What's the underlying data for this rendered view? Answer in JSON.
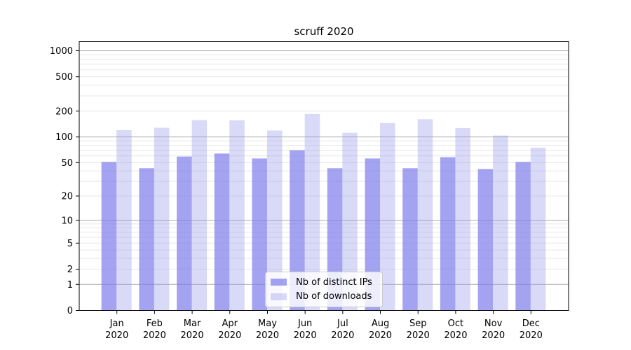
{
  "title": "scruff 2020",
  "chart_data": {
    "type": "bar",
    "title": "scruff 2020",
    "categories": [
      "Jan",
      "Feb",
      "Mar",
      "Apr",
      "May",
      "Jun",
      "Jul",
      "Aug",
      "Sep",
      "Oct",
      "Nov",
      "Dec"
    ],
    "x_tick_year": "2020",
    "series": [
      {
        "name": "Nb of distinct IPs",
        "values": [
          51,
          43,
          59,
          64,
          56,
          70,
          43,
          56,
          43,
          58,
          42,
          51
        ],
        "color": "#7c7ceb",
        "opacity": 0.7
      },
      {
        "name": "Nb of downloads",
        "values": [
          120,
          128,
          157,
          156,
          119,
          185,
          112,
          145,
          161,
          127,
          104,
          75
        ],
        "color": "#9292eb",
        "opacity": 0.35
      }
    ],
    "yscale": "symlog (position = ln(1+value))",
    "yticks": [
      0,
      1,
      2,
      5,
      10,
      20,
      50,
      100,
      200,
      500,
      1000
    ],
    "ylim": [
      0,
      1275
    ],
    "xlabel": "",
    "ylabel": "",
    "grid": "horizontal major+minor",
    "legend_position": "lower center",
    "colors": {
      "axis": "#000000",
      "grid_major": "#aaaaaa",
      "grid_minor": "#e7e7e7"
    }
  }
}
